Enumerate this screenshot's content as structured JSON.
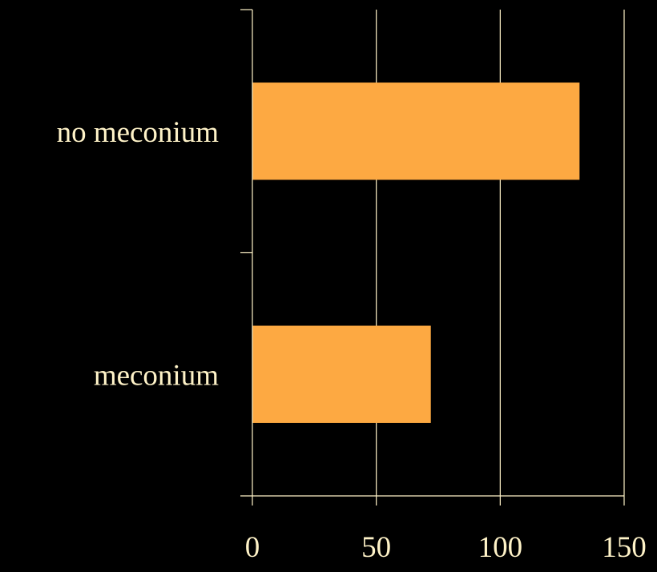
{
  "chart_data": {
    "type": "bar",
    "orientation": "horizontal",
    "categories": [
      "no meconium",
      "meconium"
    ],
    "values": [
      132,
      72
    ],
    "xlim": [
      0,
      150
    ],
    "xticks": [
      "0",
      "50",
      "100",
      "150"
    ],
    "title": "",
    "xlabel": "",
    "ylabel": "",
    "grid": "vertical",
    "legend": "none"
  },
  "colors": {
    "background": "#000000",
    "bar": "#FDA942",
    "axis": "#FFF3C8",
    "text": "#FFF3C8"
  }
}
